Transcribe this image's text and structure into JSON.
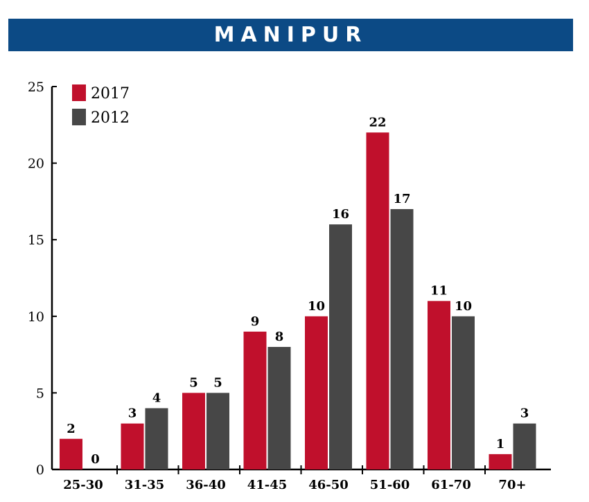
{
  "header": {
    "title": "MANIPUR",
    "color": "#0c4a85"
  },
  "chart_data": {
    "type": "bar",
    "title": "",
    "xlabel": "",
    "ylabel": "",
    "categories": [
      "25-30",
      "31-35",
      "36-40",
      "41-45",
      "46-50",
      "51-60",
      "61-70",
      "70+"
    ],
    "series": [
      {
        "name": "2017",
        "color": "#c0102c",
        "values": [
          2,
          3,
          5,
          9,
          10,
          22,
          11,
          1
        ]
      },
      {
        "name": "2012",
        "color": "#474747",
        "values": [
          0,
          4,
          5,
          8,
          16,
          17,
          10,
          3
        ]
      }
    ],
    "ylim": [
      0,
      25
    ],
    "yticks": [
      "0",
      "5",
      "10",
      "15",
      "20",
      "25"
    ],
    "grid": false,
    "legend_position": "top-left"
  }
}
